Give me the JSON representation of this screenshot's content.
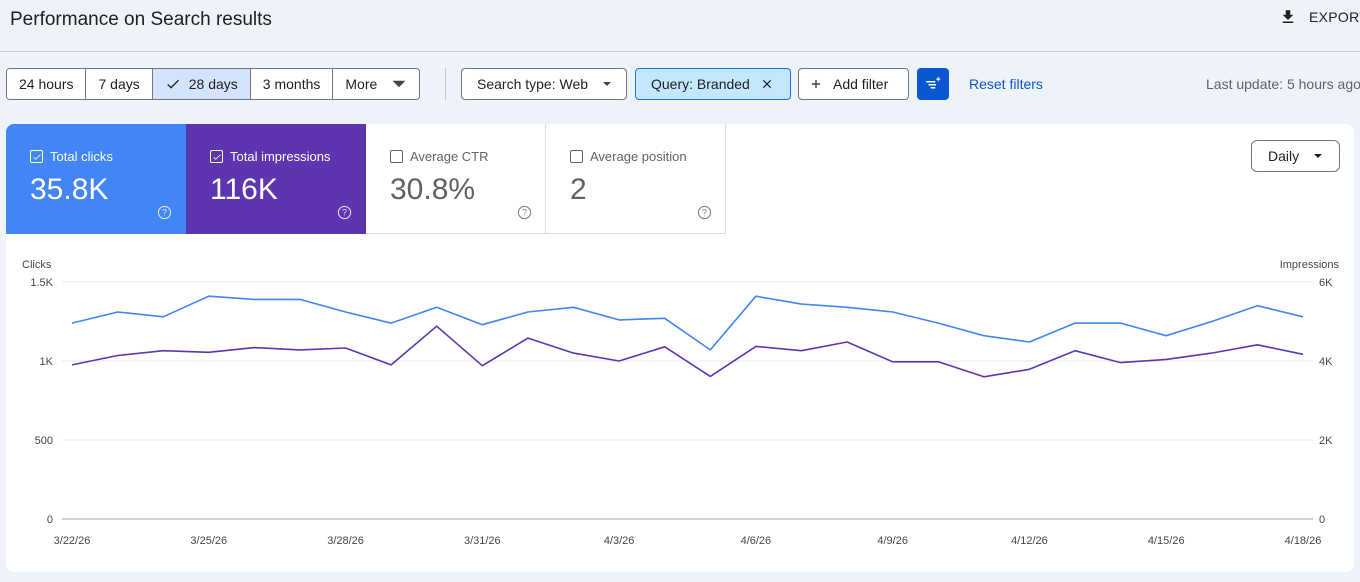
{
  "header": {
    "title": "Performance on Search results",
    "export_label": "EXPORT"
  },
  "date_range": {
    "buttons": [
      {
        "label": "24 hours",
        "active": false
      },
      {
        "label": "7 days",
        "active": false
      },
      {
        "label": "28 days",
        "active": true
      },
      {
        "label": "3 months",
        "active": false
      },
      {
        "label": "More",
        "active": false
      }
    ]
  },
  "filters": {
    "search_type": "Search type: Web",
    "query": "Query: Branded",
    "add_filter": "Add filter",
    "reset": "Reset filters",
    "last_update": "Last update: 5 hours ago"
  },
  "metrics": [
    {
      "label": "Total clicks",
      "value": "35.8K",
      "checked": true,
      "color": "#4285f4"
    },
    {
      "label": "Total impressions",
      "value": "116K",
      "checked": true,
      "color": "#5e35b1"
    },
    {
      "label": "Average CTR",
      "value": "30.8%",
      "checked": false
    },
    {
      "label": "Average position",
      "value": "2",
      "checked": false
    }
  ],
  "granularity": "Daily",
  "icons": {
    "export": "download-icon",
    "check": "check-icon",
    "dropdown": "caret-down-icon",
    "close": "close-icon",
    "add": "plus-icon",
    "filter": "filter-sparkle-icon",
    "help": "help-icon"
  },
  "chart_data": {
    "type": "line",
    "ylabel_left": "Clicks",
    "ylabel_right": "Impressions",
    "yticks_left": [
      "0",
      "500",
      "1K",
      "1.5K"
    ],
    "yticks_right": [
      "0",
      "2K",
      "4K",
      "6K"
    ],
    "ylim_left": [
      0,
      1500
    ],
    "ylim_right": [
      0,
      6000
    ],
    "x_labels": [
      "3/22/26",
      "3/25/26",
      "3/28/26",
      "3/31/26",
      "4/3/26",
      "4/6/26",
      "4/9/26",
      "4/12/26",
      "4/15/26",
      "4/18/26"
    ],
    "x": [
      "3/22/26",
      "3/23/26",
      "3/24/26",
      "3/25/26",
      "3/26/26",
      "3/27/26",
      "3/28/26",
      "3/29/26",
      "3/30/26",
      "3/31/26",
      "4/1/26",
      "4/2/26",
      "4/3/26",
      "4/4/26",
      "4/5/26",
      "4/6/26",
      "4/7/26",
      "4/8/26",
      "4/9/26",
      "4/10/26",
      "4/11/26",
      "4/12/26",
      "4/13/26",
      "4/14/26",
      "4/15/26",
      "4/16/26",
      "4/17/26",
      "4/18/26"
    ],
    "grid": true,
    "series": [
      {
        "name": "Clicks",
        "axis": "left",
        "color": "#4285f4",
        "values": [
          1240,
          1310,
          1280,
          1410,
          1390,
          1390,
          1310,
          1240,
          1340,
          1230,
          1310,
          1340,
          1260,
          1270,
          1070,
          1410,
          1360,
          1340,
          1310,
          1240,
          1160,
          1120,
          1240,
          1240,
          1160,
          1250,
          1350,
          1280
        ]
      },
      {
        "name": "Impressions",
        "axis": "right",
        "color": "#5e35b1",
        "values": [
          3900,
          4140,
          4260,
          4220,
          4340,
          4280,
          4330,
          3900,
          4880,
          3880,
          4580,
          4200,
          4000,
          4360,
          3610,
          4370,
          4260,
          4480,
          3980,
          3980,
          3600,
          3790,
          4260,
          3960,
          4040,
          4200,
          4410,
          4170
        ]
      }
    ]
  }
}
